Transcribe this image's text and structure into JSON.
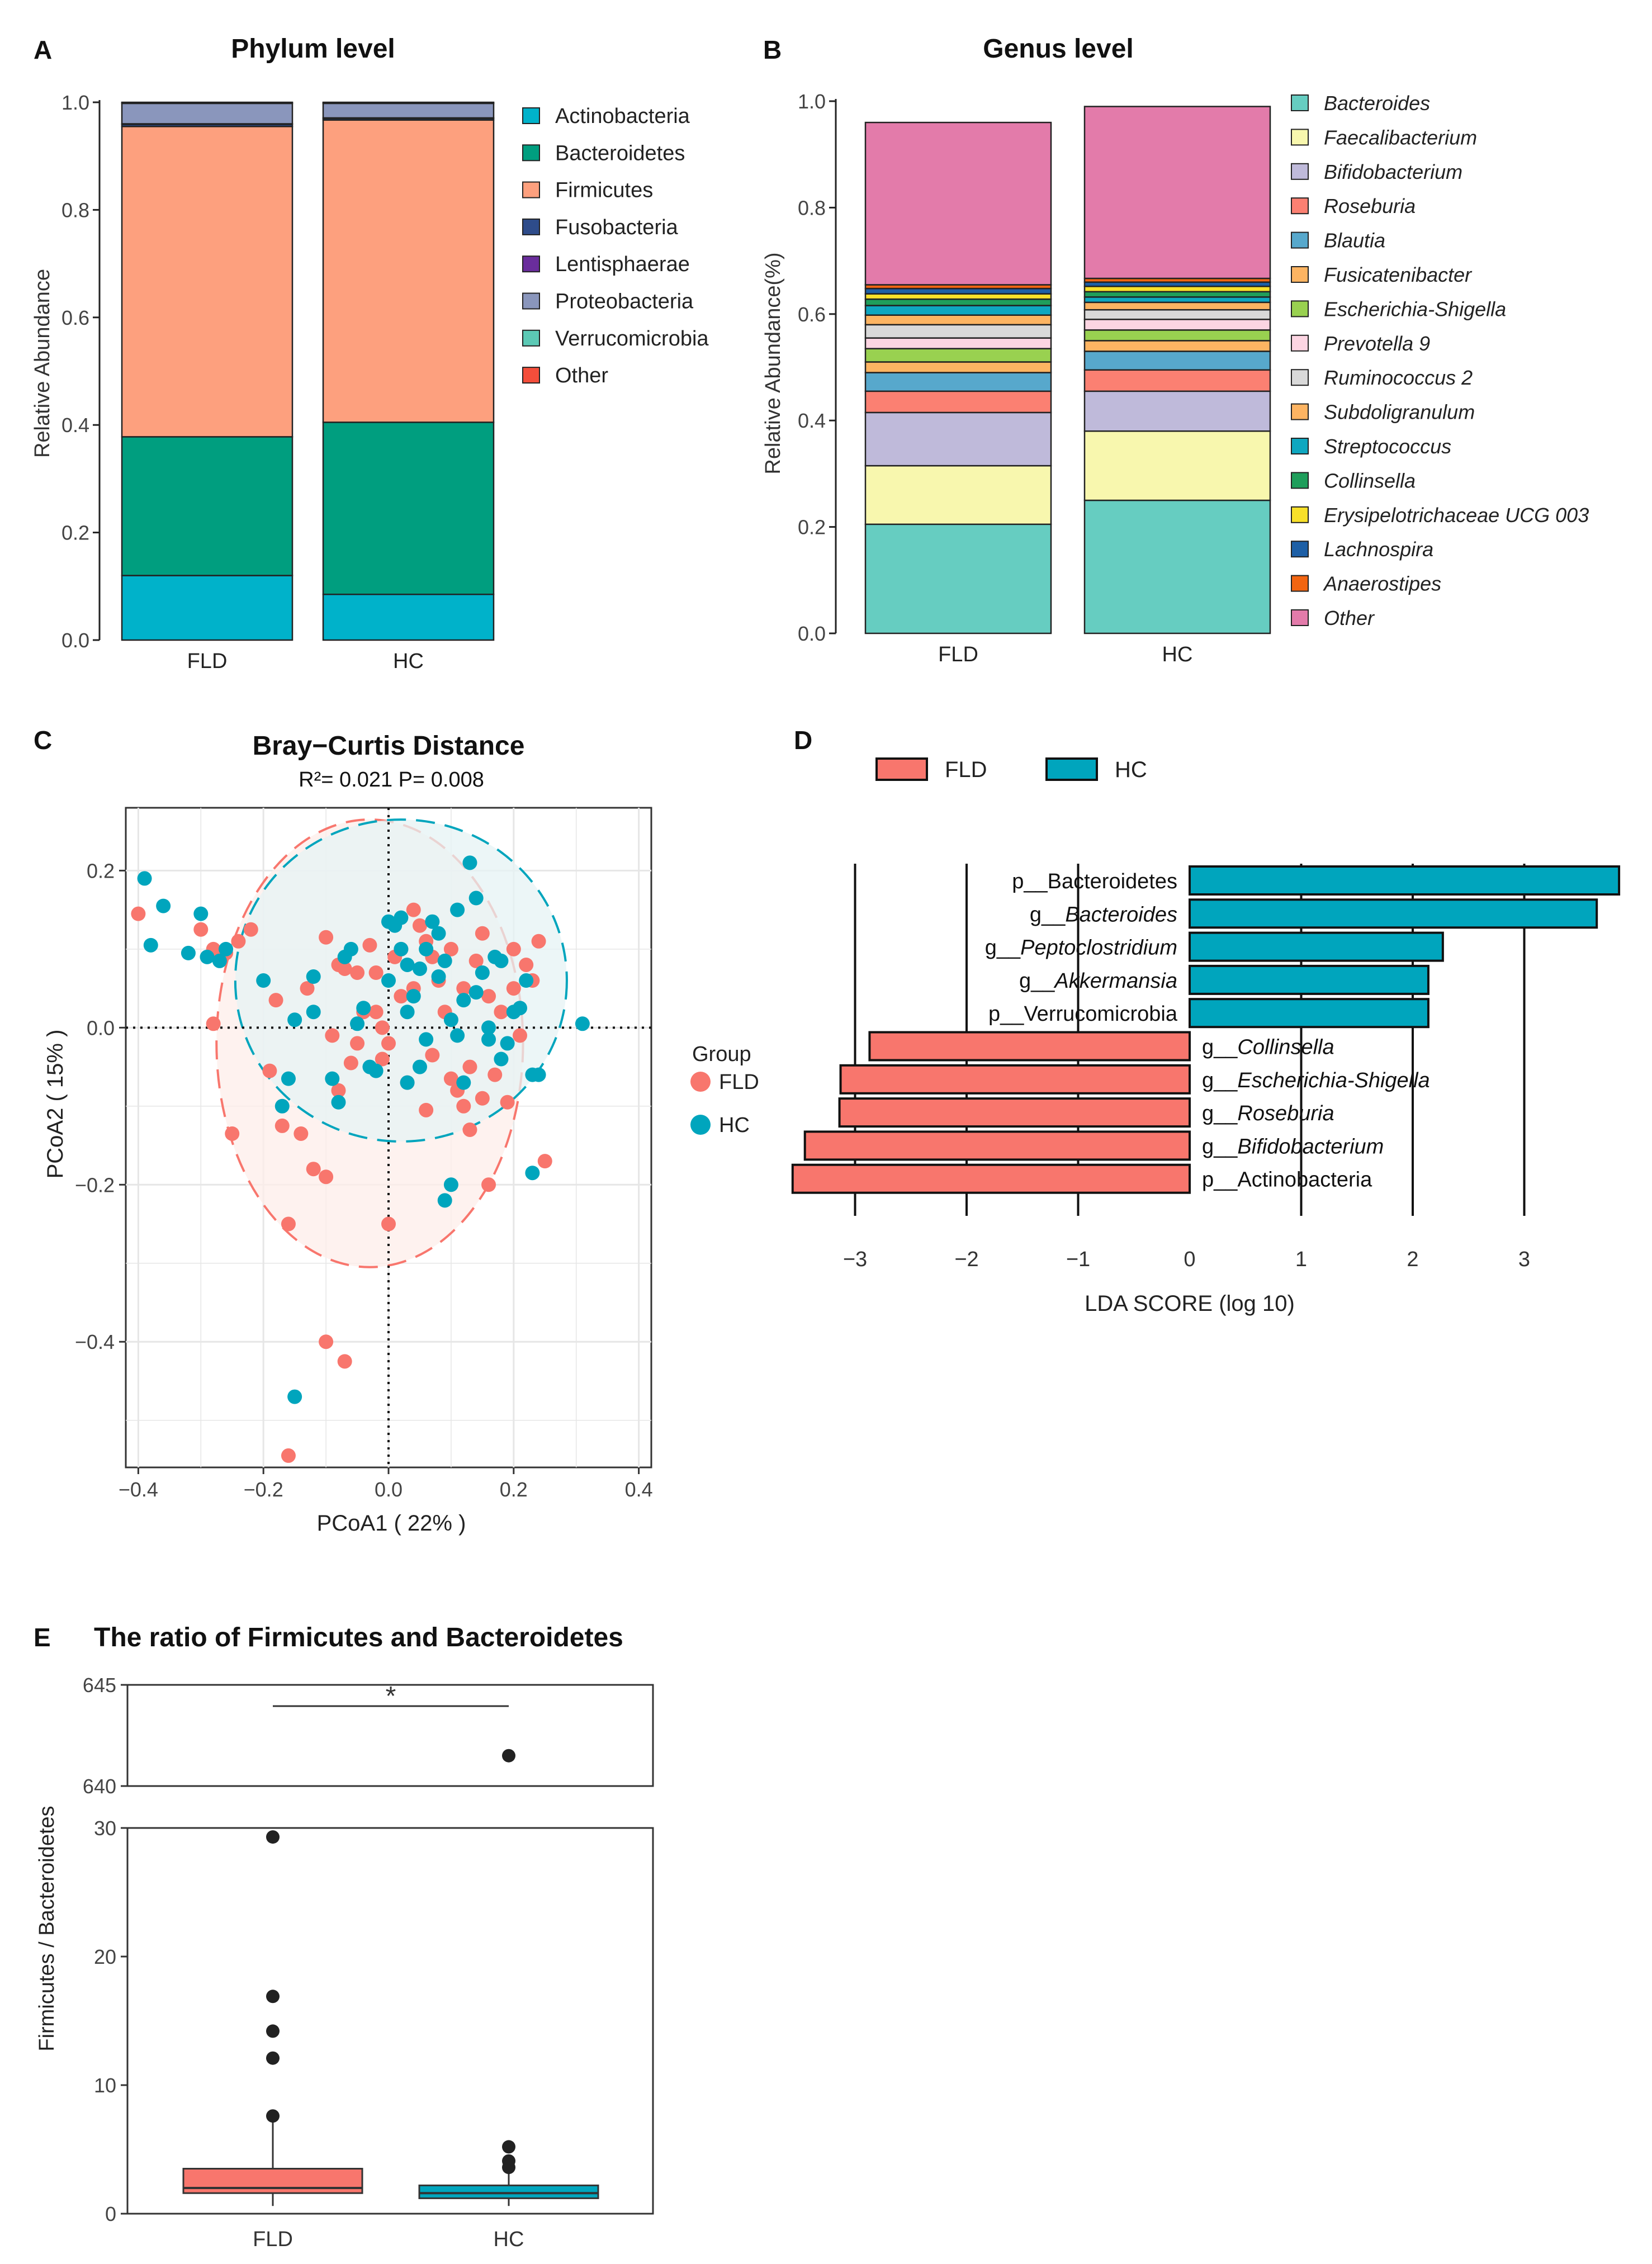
{
  "colors": {
    "fld": "#F8766D",
    "hc": "#00A5BD",
    "fld_ellipse_fill": "#FDEDEA",
    "hc_ellipse_fill": "#E6F3F4"
  },
  "chart_data": [
    {
      "panel": "A",
      "type": "bar",
      "stacked": true,
      "title": "Phylum level",
      "ylabel": "Relative Abundance",
      "ylim": [
        0,
        1.0
      ],
      "yticks": [
        "0.0",
        "0.2",
        "0.4",
        "0.6",
        "0.8",
        "1.0"
      ],
      "categories": [
        "FLD",
        "HC"
      ],
      "series": [
        {
          "name": "Actinobacteria",
          "color": "#00B2CA",
          "values": [
            0.12,
            0.085
          ]
        },
        {
          "name": "Bacteroidetes",
          "color": "#009E7F",
          "values": [
            0.258,
            0.32
          ]
        },
        {
          "name": "Firmicutes",
          "color": "#FDA07E",
          "values": [
            0.577,
            0.562
          ]
        },
        {
          "name": "Fusobacteria",
          "color": "#2E4C8A",
          "values": [
            0.004,
            0.003
          ]
        },
        {
          "name": "Lentisphaerae",
          "color": "#6A2D9C",
          "values": [
            0.001,
            0.001
          ]
        },
        {
          "name": "Proteobacteria",
          "color": "#8A96BC",
          "values": [
            0.038,
            0.027
          ]
        },
        {
          "name": "Verrucomicrobia",
          "color": "#5CC9B5",
          "values": [
            0.001,
            0.001
          ]
        },
        {
          "name": "Other",
          "color": "#F44E3B",
          "values": [
            0.001,
            0.001
          ]
        }
      ]
    },
    {
      "panel": "B",
      "type": "bar",
      "stacked": true,
      "title": "Genus level",
      "ylabel": "Relative Abundance(%)",
      "ylim": [
        0,
        1.0
      ],
      "yticks": [
        "0.0",
        "0.2",
        "0.4",
        "0.6",
        "0.8",
        "1.0"
      ],
      "categories": [
        "FLD",
        "HC"
      ],
      "series": [
        {
          "name": "Bacteroides",
          "color": "#66CDC1",
          "values": [
            0.205,
            0.25
          ]
        },
        {
          "name": "Faecalibacterium",
          "color": "#F8F7AE",
          "values": [
            0.11,
            0.13
          ]
        },
        {
          "name": "Bifidobacterium",
          "color": "#BFBADA",
          "values": [
            0.1,
            0.075
          ]
        },
        {
          "name": "Roseburia",
          "color": "#FB8072",
          "values": [
            0.04,
            0.04
          ]
        },
        {
          "name": "Blautia",
          "color": "#57A8CC",
          "values": [
            0.035,
            0.035
          ]
        },
        {
          "name": "Fusicatenibacter",
          "color": "#FDB462",
          "values": [
            0.02,
            0.02
          ]
        },
        {
          "name": "Escherichia-Shigella",
          "color": "#99D150",
          "values": [
            0.025,
            0.02
          ]
        },
        {
          "name": "Prevotella 9",
          "color": "#FCD5E2",
          "values": [
            0.02,
            0.02
          ]
        },
        {
          "name": "Ruminococcus 2",
          "color": "#D9D9D9",
          "values": [
            0.025,
            0.018
          ]
        },
        {
          "name": "Subdoligranulum",
          "color": "#FDB462",
          "values": [
            0.018,
            0.014
          ]
        },
        {
          "name": "Streptococcus",
          "color": "#0FA7C0",
          "values": [
            0.018,
            0.01
          ]
        },
        {
          "name": "Collinsella",
          "color": "#1F9E5B",
          "values": [
            0.012,
            0.01
          ]
        },
        {
          "name": "Erysipelotrichaceae UCG 003",
          "color": "#F8E02A",
          "values": [
            0.01,
            0.01
          ]
        },
        {
          "name": "Lachnospira",
          "color": "#1D5FA6",
          "values": [
            0.01,
            0.008
          ]
        },
        {
          "name": "Anaerostipes",
          "color": "#F26511",
          "values": [
            0.007,
            0.007
          ]
        },
        {
          "name": "Other",
          "color": "#E37BAA",
          "values": [
            0.305,
            0.323
          ]
        }
      ]
    },
    {
      "panel": "C",
      "type": "scatter",
      "title": "Bray−Curtis Distance",
      "subtitle": "R²= 0.021  P= 0.008",
      "xlabel": "PCoA1 ( 22% )",
      "ylabel": "PCoA2 ( 15% )",
      "xlim": [
        -0.42,
        0.42
      ],
      "ylim": [
        -0.56,
        0.28
      ],
      "xticks": [
        -0.4,
        -0.2,
        0.0,
        0.2,
        0.4
      ],
      "xtick_labels": [
        "−0.4",
        "−0.2",
        "0.0",
        "0.2",
        "0.4"
      ],
      "yticks": [
        0.2,
        0.0,
        -0.2,
        -0.4
      ],
      "ytick_labels": [
        "0.2",
        "0.0",
        "−0.2",
        "−0.4"
      ],
      "legend_title": "Group",
      "legend": [
        "FLD",
        "HC"
      ],
      "ellipses": [
        {
          "group": "FLD",
          "center": [
            -0.03,
            -0.02
          ],
          "radii": [
            0.245,
            0.285
          ]
        },
        {
          "group": "HC",
          "center": [
            0.02,
            0.06
          ],
          "radii": [
            0.265,
            0.205
          ]
        }
      ],
      "series": [
        {
          "name": "FLD",
          "points": [
            [
              -0.4,
              0.145
            ],
            [
              -0.3,
              0.125
            ],
            [
              -0.28,
              0.1
            ],
            [
              -0.26,
              0.095
            ],
            [
              -0.24,
              0.11
            ],
            [
              -0.22,
              0.125
            ],
            [
              -0.28,
              0.005
            ],
            [
              -0.25,
              -0.135
            ],
            [
              -0.19,
              -0.055
            ],
            [
              -0.18,
              0.035
            ],
            [
              -0.17,
              -0.125
            ],
            [
              -0.16,
              -0.25
            ],
            [
              -0.14,
              -0.135
            ],
            [
              -0.13,
              0.05
            ],
            [
              -0.12,
              -0.18
            ],
            [
              -0.1,
              0.115
            ],
            [
              -0.09,
              -0.01
            ],
            [
              -0.08,
              0.08
            ],
            [
              -0.08,
              -0.08
            ],
            [
              -0.07,
              0.075
            ],
            [
              -0.06,
              -0.045
            ],
            [
              -0.05,
              0.07
            ],
            [
              -0.03,
              0.105
            ],
            [
              -0.02,
              0.07
            ],
            [
              -0.01,
              0.0
            ],
            [
              0.01,
              0.09
            ],
            [
              0.02,
              0.1
            ],
            [
              0.04,
              0.15
            ],
            [
              0.05,
              0.13
            ],
            [
              0.06,
              0.11
            ],
            [
              0.07,
              0.09
            ],
            [
              0.08,
              0.06
            ],
            [
              0.09,
              0.02
            ],
            [
              0.1,
              0.1
            ],
            [
              0.12,
              0.05
            ],
            [
              0.13,
              -0.05
            ],
            [
              0.14,
              0.085
            ],
            [
              0.15,
              0.12
            ],
            [
              0.16,
              0.04
            ],
            [
              0.17,
              -0.06
            ],
            [
              0.18,
              0.02
            ],
            [
              0.19,
              -0.095
            ],
            [
              0.2,
              0.05
            ],
            [
              0.21,
              -0.01
            ],
            [
              0.22,
              0.08
            ],
            [
              0.24,
              0.11
            ],
            [
              0.25,
              -0.17
            ],
            [
              0.06,
              -0.105
            ],
            [
              0.03,
              -0.07
            ],
            [
              0.0,
              -0.02
            ],
            [
              -0.01,
              -0.04
            ],
            [
              -0.04,
              0.02
            ],
            [
              0.11,
              -0.08
            ],
            [
              0.12,
              -0.1
            ],
            [
              0.13,
              -0.13
            ],
            [
              0.15,
              -0.09
            ],
            [
              0.0,
              -0.25
            ],
            [
              -0.07,
              -0.425
            ],
            [
              -0.1,
              -0.4
            ],
            [
              -0.16,
              -0.545
            ],
            [
              0.07,
              -0.035
            ],
            [
              0.1,
              -0.065
            ],
            [
              -0.05,
              -0.02
            ],
            [
              -0.1,
              -0.19
            ],
            [
              0.16,
              -0.2
            ],
            [
              0.02,
              0.04
            ],
            [
              0.04,
              0.05
            ],
            [
              -0.02,
              0.02
            ],
            [
              0.2,
              0.1
            ],
            [
              0.23,
              0.06
            ]
          ]
        },
        {
          "name": "HC",
          "points": [
            [
              -0.39,
              0.19
            ],
            [
              -0.36,
              0.155
            ],
            [
              -0.38,
              0.105
            ],
            [
              -0.3,
              0.145
            ],
            [
              -0.29,
              0.09
            ],
            [
              -0.26,
              0.1
            ],
            [
              -0.32,
              0.095
            ],
            [
              -0.27,
              0.085
            ],
            [
              -0.2,
              0.06
            ],
            [
              -0.17,
              -0.1
            ],
            [
              -0.16,
              -0.065
            ],
            [
              -0.15,
              0.01
            ],
            [
              -0.12,
              0.065
            ],
            [
              -0.09,
              -0.065
            ],
            [
              -0.08,
              -0.095
            ],
            [
              -0.07,
              0.09
            ],
            [
              -0.06,
              0.1
            ],
            [
              -0.04,
              0.025
            ],
            [
              -0.03,
              -0.05
            ],
            [
              -0.02,
              -0.055
            ],
            [
              0.0,
              0.135
            ],
            [
              0.01,
              0.13
            ],
            [
              0.02,
              0.1
            ],
            [
              0.03,
              0.08
            ],
            [
              0.04,
              0.04
            ],
            [
              0.05,
              0.075
            ],
            [
              0.06,
              0.1
            ],
            [
              0.07,
              0.135
            ],
            [
              0.08,
              0.065
            ],
            [
              0.09,
              0.085
            ],
            [
              0.1,
              0.01
            ],
            [
              0.11,
              -0.01
            ],
            [
              0.12,
              0.035
            ],
            [
              0.13,
              0.21
            ],
            [
              0.14,
              0.165
            ],
            [
              0.15,
              0.07
            ],
            [
              0.16,
              -0.015
            ],
            [
              0.17,
              0.09
            ],
            [
              0.18,
              -0.04
            ],
            [
              0.2,
              0.02
            ],
            [
              0.21,
              0.025
            ],
            [
              0.22,
              0.06
            ],
            [
              0.23,
              -0.06
            ],
            [
              0.24,
              -0.06
            ],
            [
              0.23,
              -0.185
            ],
            [
              0.31,
              0.005
            ],
            [
              0.09,
              -0.22
            ],
            [
              0.1,
              -0.2
            ],
            [
              0.05,
              -0.05
            ],
            [
              -0.15,
              -0.47
            ],
            [
              0.0,
              0.06
            ],
            [
              0.02,
              0.14
            ],
            [
              0.08,
              0.12
            ],
            [
              0.11,
              0.15
            ],
            [
              0.14,
              0.045
            ],
            [
              0.18,
              0.085
            ],
            [
              0.06,
              -0.015
            ],
            [
              0.03,
              -0.07
            ],
            [
              -0.05,
              0.005
            ],
            [
              0.12,
              -0.07
            ],
            [
              0.19,
              -0.02
            ],
            [
              0.03,
              0.02
            ],
            [
              -0.12,
              0.02
            ],
            [
              0.16,
              0.0
            ]
          ]
        }
      ]
    },
    {
      "panel": "D",
      "type": "bar",
      "orientation": "horizontal",
      "xlabel": "LDA SCORE (log 10)",
      "xlim": [
        -3.6,
        3.9
      ],
      "xticks": [
        -3,
        -2,
        -1,
        0,
        1,
        2,
        3
      ],
      "xtick_labels": [
        "−3",
        "−2",
        "−1",
        "0",
        "1",
        "2",
        "3"
      ],
      "legend": [
        "FLD",
        "HC"
      ],
      "bars": [
        {
          "label": "p__Bacteroidetes",
          "taxon": "Bacteroidetes",
          "prefix": "p__",
          "italic": false,
          "group": "HC",
          "value": 3.85
        },
        {
          "label": "g__Bacteroides",
          "taxon": "Bacteroides",
          "prefix": "g__",
          "italic": true,
          "group": "HC",
          "value": 3.65
        },
        {
          "label": "g__Peptoclostridium",
          "taxon": "Peptoclostridium",
          "prefix": "g__",
          "italic": true,
          "group": "HC",
          "value": 2.27
        },
        {
          "label": "g__Akkermansia",
          "taxon": "Akkermansia",
          "prefix": "g__",
          "italic": true,
          "group": "HC",
          "value": 2.14
        },
        {
          "label": "p__Verrucomicrobia",
          "taxon": "Verrucomicrobia",
          "prefix": "p__",
          "italic": false,
          "group": "HC",
          "value": 2.14
        },
        {
          "label": "g__Collinsella",
          "taxon": "Collinsella",
          "prefix": "g__",
          "italic": true,
          "group": "FLD",
          "value": -2.87
        },
        {
          "label": "g__Escherichia-Shigella",
          "taxon": "Escherichia-Shigella",
          "prefix": "g__",
          "italic": true,
          "group": "FLD",
          "value": -3.13
        },
        {
          "label": "g__Roseburia",
          "taxon": "Roseburia",
          "prefix": "g__",
          "italic": true,
          "group": "FLD",
          "value": -3.14
        },
        {
          "label": "g__Bifidobacterium",
          "taxon": "Bifidobacterium",
          "prefix": "g__",
          "italic": true,
          "group": "FLD",
          "value": -3.45
        },
        {
          "label": "p__Actinobacteria",
          "taxon": "Actinobacteria",
          "prefix": "p__",
          "italic": false,
          "group": "FLD",
          "value": -3.56
        }
      ]
    },
    {
      "panel": "E",
      "type": "box",
      "title": "The ratio of Firmicutes and Bacteroidetes",
      "ylabel": "Firmicutes / Bacteroidetes",
      "categories": [
        "FLD",
        "HC"
      ],
      "significance": "*",
      "lower_axis": {
        "ylim": [
          0,
          30
        ],
        "yticks": [
          0,
          10,
          20,
          30
        ]
      },
      "upper_axis": {
        "ylim": [
          640,
          645
        ],
        "yticks": [
          640,
          645
        ]
      },
      "boxes": [
        {
          "group": "FLD",
          "q1": 1.6,
          "median": 2.0,
          "q3": 3.5,
          "whisker_low": 0.6,
          "whisker_high": 7.8,
          "outliers": [
            7.6,
            12.1,
            14.2,
            16.9,
            29.3
          ]
        },
        {
          "group": "HC",
          "q1": 1.2,
          "median": 1.6,
          "q3": 2.2,
          "whisker_low": 0.6,
          "whisker_high": 3.4,
          "outliers": [
            3.6,
            4.1,
            5.2,
            641.5
          ]
        }
      ]
    }
  ]
}
